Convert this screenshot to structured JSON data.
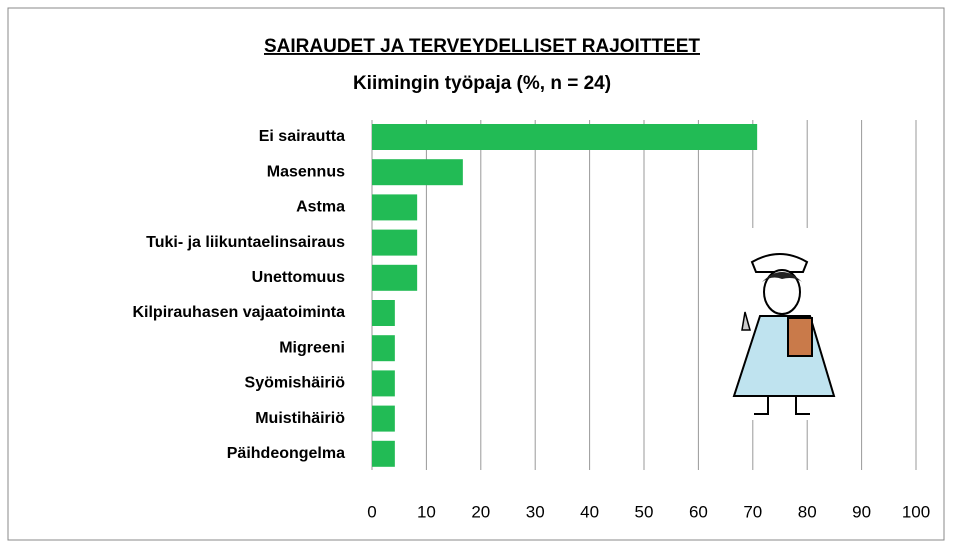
{
  "chart_data": {
    "type": "bar",
    "orientation": "horizontal",
    "title": "SAIRAUDET JA TERVEYDELLISET RAJOITTEET",
    "subtitle": "Kiimingin työpaja (%, n = 24)",
    "categories": [
      "Ei sairautta",
      "Masennus",
      "Astma",
      "Tuki- ja liikuntaelinsairaus",
      "Unettomuus",
      "Kilpirauhasen vajaatoiminta",
      "Migreeni",
      "Syömishäiriö",
      "Muistihäiriö",
      "Päihdeongelma"
    ],
    "values": [
      70.8,
      16.7,
      8.3,
      8.3,
      8.3,
      4.2,
      4.2,
      4.2,
      4.2,
      4.2
    ],
    "color": "#22bb55",
    "xlim": [
      0,
      100
    ],
    "xticks": [
      0,
      10,
      20,
      30,
      40,
      50,
      60,
      70,
      80,
      90,
      100
    ],
    "grid": true
  }
}
